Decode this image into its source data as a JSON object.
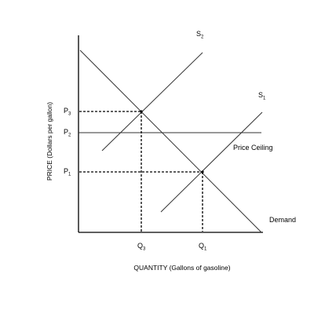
{
  "diagram": {
    "y_axis_label": "PRICE (Dollars per gallon)",
    "x_axis_label": "QUANTITY (Gallons of gasoline)",
    "price_labels": [
      {
        "main": "P",
        "sub": "3"
      },
      {
        "main": "P",
        "sub": "2"
      },
      {
        "main": "P",
        "sub": "1"
      }
    ],
    "quantity_labels": [
      {
        "main": "Q",
        "sub": "3"
      },
      {
        "main": "Q",
        "sub": "1"
      }
    ],
    "curves": {
      "s2": {
        "main": "S",
        "sub": "2"
      },
      "s1": {
        "main": "S",
        "sub": "1"
      },
      "price_ceiling": "Price Ceiling",
      "demand": "Demand"
    }
  }
}
